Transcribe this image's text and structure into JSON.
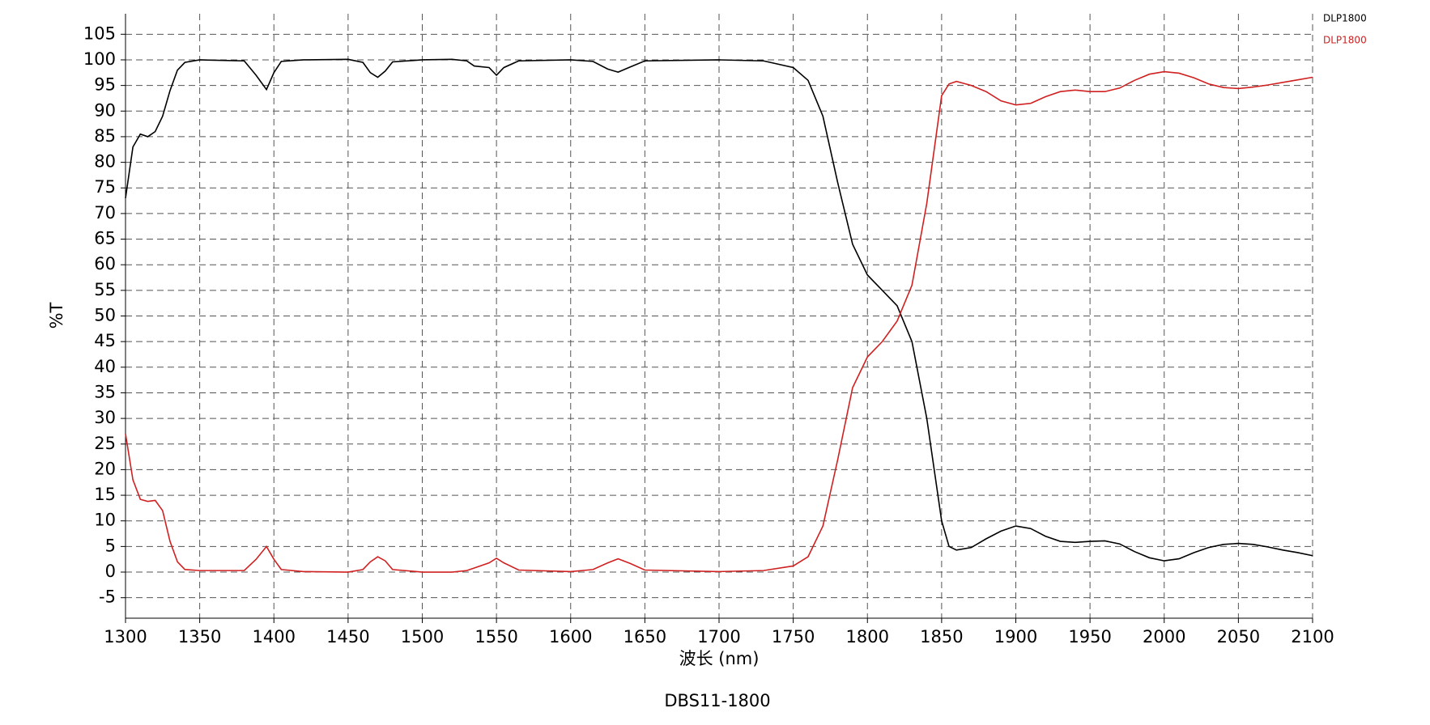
{
  "chart_data": {
    "type": "line",
    "title": "DBS11-1800",
    "xlabel": "波长 (nm)",
    "ylabel": "%T",
    "x": [
      1300,
      1305,
      1310,
      1315,
      1320,
      1325,
      1330,
      1335,
      1340,
      1350,
      1380,
      1388,
      1395,
      1400,
      1405,
      1420,
      1450,
      1460,
      1465,
      1470,
      1475,
      1480,
      1500,
      1520,
      1530,
      1535,
      1545,
      1550,
      1555,
      1565,
      1600,
      1615,
      1625,
      1632,
      1640,
      1650,
      1700,
      1730,
      1750,
      1760,
      1770,
      1780,
      1790,
      1800,
      1810,
      1820,
      1830,
      1840,
      1850,
      1855,
      1860,
      1870,
      1880,
      1890,
      1900,
      1910,
      1920,
      1930,
      1940,
      1950,
      1960,
      1970,
      1980,
      1990,
      2000,
      2010,
      2020,
      2030,
      2040,
      2050,
      2060,
      2070,
      2080,
      2090,
      2100
    ],
    "series": [
      {
        "name": "DLP1800",
        "color": "#000000",
        "values": [
          73,
          83,
          85.5,
          85,
          86,
          89,
          94,
          98,
          99.5,
          100,
          99.8,
          97,
          94.2,
          97.5,
          99.7,
          100,
          100.1,
          99.5,
          97.5,
          96.6,
          97.8,
          99.6,
          100,
          100.1,
          99.8,
          98.8,
          98.5,
          97,
          98.5,
          99.8,
          100,
          99.7,
          98.2,
          97.6,
          98.6,
          99.8,
          100,
          99.8,
          98.5,
          96,
          89,
          76,
          64,
          58,
          55,
          52,
          45,
          30,
          10,
          5,
          4.3,
          4.8,
          6.5,
          8,
          9,
          8.5,
          7,
          6,
          5.8,
          6,
          6.1,
          5.5,
          4,
          2.8,
          2.2,
          2.6,
          3.8,
          4.8,
          5.4,
          5.6,
          5.4,
          4.9,
          4.3,
          3.8,
          3.2
        ]
      },
      {
        "name": "DLP1800",
        "color": "#d02020",
        "values": [
          27,
          18,
          14.2,
          13.8,
          14,
          12,
          6,
          2,
          0.5,
          0.3,
          0.3,
          2.5,
          5,
          2.5,
          0.5,
          0.1,
          0,
          0.5,
          2,
          3,
          2.2,
          0.5,
          0,
          0,
          0.3,
          0.8,
          1.8,
          2.7,
          1.8,
          0.4,
          0.1,
          0.5,
          1.8,
          2.6,
          1.7,
          0.4,
          0.1,
          0.3,
          1.2,
          3,
          9,
          22,
          36,
          42,
          45,
          49,
          56,
          72,
          93,
          95.3,
          95.8,
          95,
          93.8,
          92,
          91.2,
          91.5,
          92.8,
          93.8,
          94.1,
          93.8,
          93.8,
          94.5,
          96,
          97.2,
          97.7,
          97.4,
          96.5,
          95.3,
          94.6,
          94.4,
          94.7,
          95.1,
          95.6,
          96.1,
          96.6
        ]
      }
    ],
    "xlim": [
      1300,
      2100
    ],
    "xticks": [
      1300,
      1350,
      1400,
      1450,
      1500,
      1550,
      1600,
      1650,
      1700,
      1750,
      1800,
      1850,
      1900,
      1950,
      2000,
      2050,
      2100
    ],
    "ylim": [
      -9,
      109
    ],
    "yticks": [
      -5,
      0,
      5,
      10,
      15,
      20,
      25,
      30,
      35,
      40,
      45,
      50,
      55,
      60,
      65,
      70,
      75,
      80,
      85,
      90,
      95,
      100,
      105
    ],
    "grid": true,
    "legend": "top-right"
  }
}
